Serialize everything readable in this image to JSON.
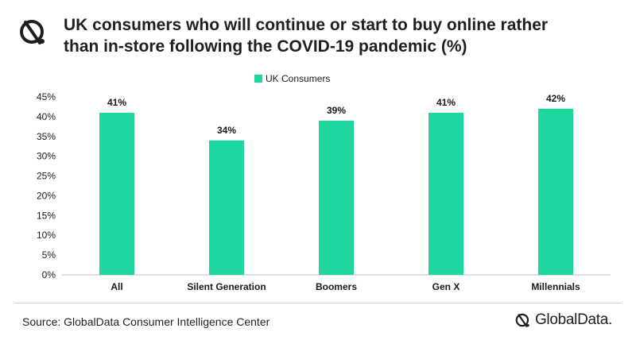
{
  "header": {
    "title_line1": "UK consumers who will continue or start to buy online rather",
    "title_line2": "than in-store following the COVID-19 pandemic (%)"
  },
  "footer": {
    "source": "Source: GlobalData Consumer Intelligence Center",
    "brand": "GlobalData."
  },
  "colors": {
    "bar": "#1ED6A0",
    "axis": "#bfbfbf",
    "text": "#1a1a1a"
  },
  "icons": {
    "logo": "globaldata-logo-icon"
  },
  "chart_data": {
    "type": "bar",
    "categories": [
      "All",
      "Silent Generation",
      "Boomers",
      "Gen X",
      "Millennials"
    ],
    "series": [
      {
        "name": "UK Consumers",
        "values": [
          41,
          34,
          39,
          41,
          42
        ]
      }
    ],
    "data_labels": [
      "41%",
      "34%",
      "39%",
      "41%",
      "42%"
    ],
    "yticks": [
      "0%",
      "5%",
      "10%",
      "15%",
      "20%",
      "25%",
      "30%",
      "35%",
      "40%",
      "45%"
    ],
    "ylim": [
      0,
      45
    ],
    "grid": false,
    "legend": "top-center"
  }
}
